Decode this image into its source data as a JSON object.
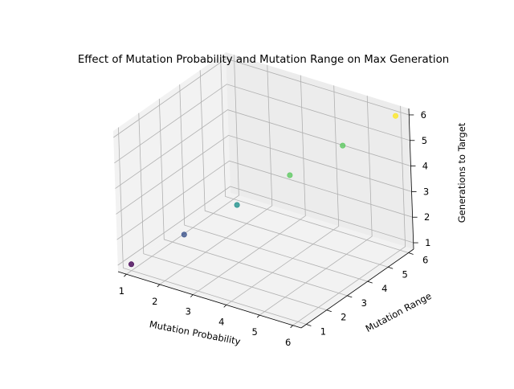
{
  "chart_data": {
    "type": "scatter",
    "title": "Effect of Mutation Probability and Mutation Range on Max Generation",
    "xlabel": "Mutation Probability",
    "ylabel": "Mutation Range",
    "zlabel": "Generations to Target",
    "xticks": [
      "1",
      "2",
      "3",
      "4",
      "5",
      "6"
    ],
    "yticks": [
      "1",
      "2",
      "3",
      "4",
      "5",
      "6"
    ],
    "zticks": [
      "1",
      "2",
      "3",
      "4",
      "5",
      "6"
    ],
    "xlim": [
      0.75,
      6.25
    ],
    "ylim": [
      0.75,
      6.25
    ],
    "zlim": [
      0.75,
      6.25
    ],
    "grid": true,
    "colormap": "viridis",
    "points": [
      {
        "x": 1,
        "y": 1,
        "z": 1,
        "color": "#440154"
      },
      {
        "x": 2,
        "y": 2,
        "z": 2,
        "color": "#3b528b"
      },
      {
        "x": 3,
        "y": 3,
        "z": 3,
        "color": "#21918c"
      },
      {
        "x": 4,
        "y": 4,
        "z": 4,
        "color": "#5ec962"
      },
      {
        "x": 5,
        "y": 5,
        "z": 5,
        "color": "#5ec962"
      },
      {
        "x": 6,
        "y": 6,
        "z": 6,
        "color": "#fde725"
      }
    ]
  }
}
